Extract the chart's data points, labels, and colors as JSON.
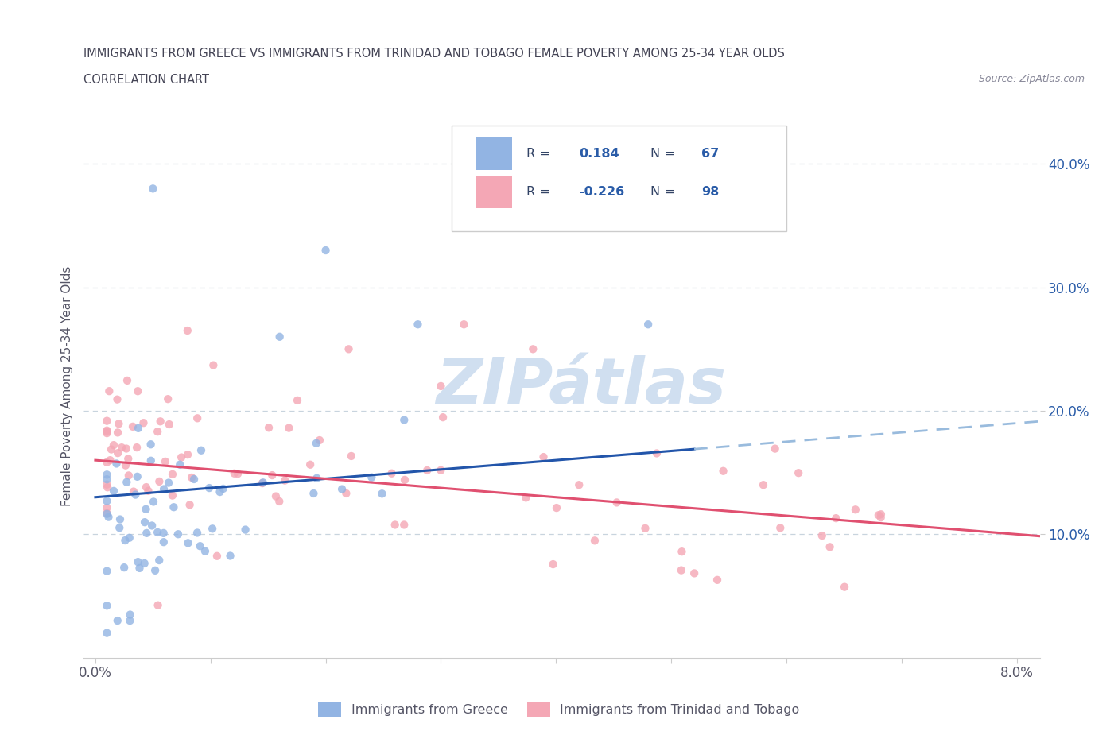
{
  "title_line1": "IMMIGRANTS FROM GREECE VS IMMIGRANTS FROM TRINIDAD AND TOBAGO FEMALE POVERTY AMONG 25-34 YEAR OLDS",
  "title_line2": "CORRELATION CHART",
  "source_text": "Source: ZipAtlas.com",
  "ylabel": "Female Poverty Among 25-34 Year Olds",
  "xlim": [
    0.0,
    0.082
  ],
  "ylim": [
    0.0,
    0.44
  ],
  "greece_color": "#92b4e3",
  "tt_color": "#f4a7b5",
  "greece_line_color": "#2255aa",
  "tt_line_color": "#e05070",
  "dashed_line_color": "#99bbdd",
  "watermark_color": "#d0dff0",
  "background_color": "#ffffff",
  "grid_color": "#c8d4de",
  "legend_blue_color": "#2a5ca8",
  "axis_text_color": "#555566",
  "title_color": "#444455",
  "source_color": "#888899"
}
